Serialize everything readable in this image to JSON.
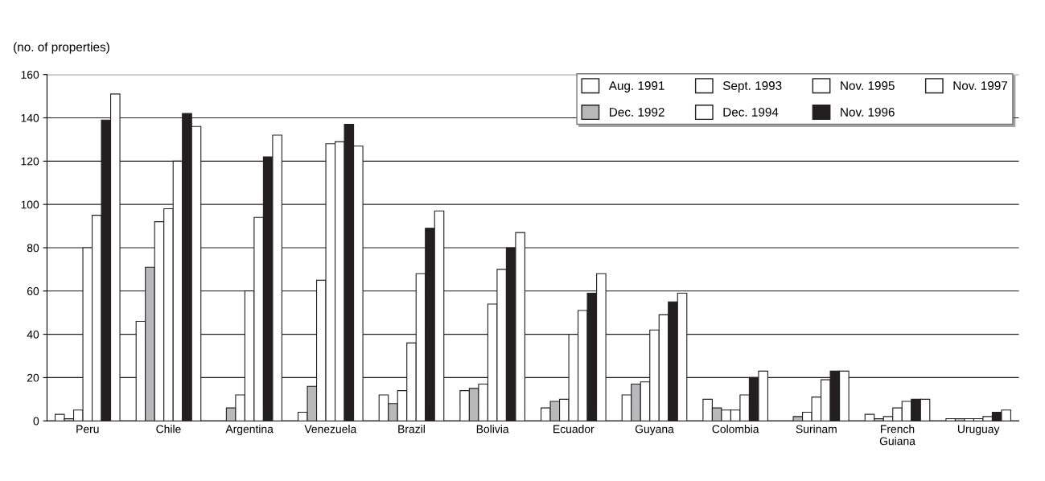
{
  "chart_data": {
    "type": "bar",
    "ylabel": "(no. of properties)",
    "categories": [
      "Peru",
      "Chile",
      "Argentina",
      "Venezuela",
      "Brazil",
      "Bolivia",
      "Ecuador",
      "Guyana",
      "Colombia",
      "Surinam",
      "French\nGuiana",
      "Uruguay"
    ],
    "series": [
      {
        "name": "Aug. 1991",
        "color": "#ffffff",
        "values": [
          3,
          46,
          null,
          4,
          12,
          14,
          6,
          12,
          10,
          null,
          3,
          1
        ]
      },
      {
        "name": "Dec. 1992",
        "color": "#b8b9bb",
        "values": [
          1,
          71,
          6,
          16,
          8,
          15,
          9,
          17,
          6,
          2,
          1,
          1
        ]
      },
      {
        "name": "Sept. 1993",
        "color": "#ffffff",
        "values": [
          5,
          92,
          12,
          65,
          14,
          17,
          10,
          18,
          5,
          4,
          2,
          1
        ]
      },
      {
        "name": "Dec. 1994",
        "color": "#ffffff",
        "values": [
          80,
          98,
          60,
          128,
          36,
          54,
          40,
          42,
          5,
          11,
          6,
          1
        ]
      },
      {
        "name": "Nov. 1995",
        "color": "#ffffff",
        "values": [
          95,
          120,
          94,
          129,
          68,
          70,
          51,
          49,
          12,
          19,
          9,
          2
        ]
      },
      {
        "name": "Nov. 1996",
        "color": "#231f20",
        "values": [
          139,
          142,
          122,
          137,
          89,
          80,
          59,
          55,
          20,
          23,
          10,
          4
        ]
      },
      {
        "name": "Nov. 1997",
        "color": "#ffffff",
        "values": [
          151,
          136,
          132,
          127,
          97,
          87,
          68,
          59,
          23,
          23,
          10,
          5
        ]
      }
    ],
    "ylim": [
      0,
      160
    ],
    "yticks": [
      0,
      20,
      40,
      60,
      80,
      100,
      120,
      140,
      160
    ],
    "grid": "y",
    "legend": "top right"
  }
}
